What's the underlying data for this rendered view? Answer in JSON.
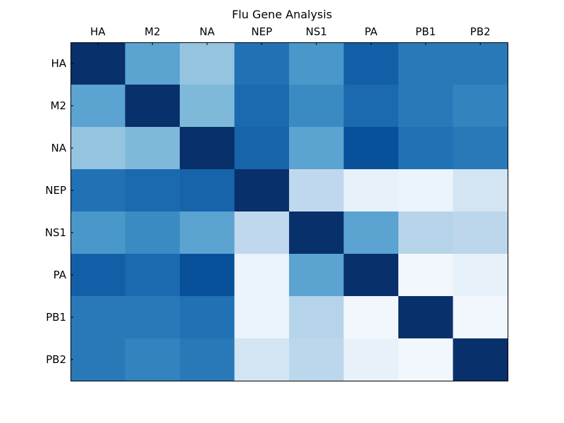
{
  "chart_data": {
    "type": "heatmap",
    "title": "Flu Gene Analysis",
    "x_categories": [
      "HA",
      "M2",
      "NA",
      "NEP",
      "NS1",
      "PA",
      "PB1",
      "PB2"
    ],
    "y_categories": [
      "HA",
      "M2",
      "NA",
      "NEP",
      "NS1",
      "PA",
      "PB1",
      "PB2"
    ],
    "x_tick_position": "top",
    "colormap": "Blues",
    "value_range": [
      0,
      1
    ],
    "grid": false,
    "legend": "none",
    "values": [
      [
        1.0,
        0.55,
        0.4,
        0.75,
        0.6,
        0.82,
        0.72,
        0.72
      ],
      [
        0.55,
        1.0,
        0.45,
        0.78,
        0.65,
        0.78,
        0.72,
        0.68
      ],
      [
        0.4,
        0.45,
        1.0,
        0.8,
        0.55,
        0.88,
        0.75,
        0.72
      ],
      [
        0.75,
        0.78,
        0.8,
        1.0,
        0.27,
        0.08,
        0.06,
        0.18
      ],
      [
        0.6,
        0.65,
        0.55,
        0.27,
        1.0,
        0.55,
        0.3,
        0.28
      ],
      [
        0.82,
        0.78,
        0.88,
        0.06,
        0.55,
        1.0,
        0.03,
        0.08
      ],
      [
        0.72,
        0.72,
        0.75,
        0.06,
        0.3,
        0.03,
        1.0,
        0.03
      ],
      [
        0.72,
        0.68,
        0.72,
        0.18,
        0.28,
        0.08,
        0.03,
        1.0
      ]
    ]
  }
}
